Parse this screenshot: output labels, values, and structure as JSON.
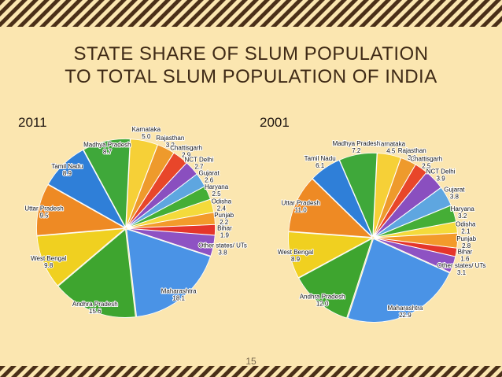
{
  "slide": {
    "title_line1": "STATE SHARE OF SLUM POPULATION",
    "title_line2": "TO TOTAL SLUM POPULATION OF INDIA",
    "page_number": "15"
  },
  "colors": {
    "background": "#fbe6b0",
    "stripe_dark": "#4a2f18",
    "stripe_light": "#fbe6b0",
    "title": "#3f2a16"
  },
  "chart_data": [
    {
      "type": "pie",
      "title": "2011",
      "slices": [
        {
          "label": "Karnataka",
          "value": 5.0,
          "color": "#f6d037"
        },
        {
          "label": "Rajasthan",
          "value": 3.2,
          "color": "#ee9a2c"
        },
        {
          "label": "Chattisgarh",
          "value": 2.9,
          "color": "#e8462a"
        },
        {
          "label": "NCT Delhi",
          "value": 2.7,
          "color": "#8a4fbf"
        },
        {
          "label": "Gujarat",
          "value": 2.6,
          "color": "#5ea6e0"
        },
        {
          "label": "Haryana",
          "value": 2.5,
          "color": "#45ae36"
        },
        {
          "label": "Odisha",
          "value": 2.4,
          "color": "#f4da3b"
        },
        {
          "label": "Punjab",
          "value": 2.2,
          "color": "#f39a2b"
        },
        {
          "label": "Bihar",
          "value": 1.9,
          "color": "#e5352b"
        },
        {
          "label": "Other states/ UTs",
          "value": 3.8,
          "color": "#8e52c3"
        },
        {
          "label": "Maharashtra",
          "value": 18.1,
          "color": "#4a93e6"
        },
        {
          "label": "Andhra Pradesh",
          "value": 15.6,
          "color": "#3ea52f"
        },
        {
          "label": "West Bengal",
          "value": 9.8,
          "color": "#f0d020"
        },
        {
          "label": "Uttar Pradesh",
          "value": 9.5,
          "color": "#ee8a24"
        },
        {
          "label": "Tamil Nadu",
          "value": 8.9,
          "color": "#2f7fd8"
        },
        {
          "label": "Madhya Pradesh",
          "value": 8.7,
          "color": "#3fa83a"
        }
      ]
    },
    {
      "type": "pie",
      "title": "2001",
      "slices": [
        {
          "label": "Karnataka",
          "value": 4.5,
          "color": "#f6d037"
        },
        {
          "label": "Rajasthan",
          "value": 3.0,
          "color": "#ee9a2c"
        },
        {
          "label": "Chattisgarh",
          "value": 2.5,
          "color": "#e8462a"
        },
        {
          "label": "NCT Delhi",
          "value": 3.9,
          "color": "#8a4fbf"
        },
        {
          "label": "Gujarat",
          "value": 3.8,
          "color": "#5ea6e0"
        },
        {
          "label": "Haryana",
          "value": 3.2,
          "color": "#45ae36"
        },
        {
          "label": "Odisha",
          "value": 2.1,
          "color": "#f4da3b"
        },
        {
          "label": "Punjab",
          "value": 2.8,
          "color": "#f39a2b"
        },
        {
          "label": "Bihar",
          "value": 1.6,
          "color": "#e5352b"
        },
        {
          "label": "Other states/ UTs",
          "value": 3.1,
          "color": "#8e52c3"
        },
        {
          "label": "Maharashtra",
          "value": 22.9,
          "color": "#4a93e6"
        },
        {
          "label": "Andhra Pradesh",
          "value": 12.0,
          "color": "#3ea52f"
        },
        {
          "label": "West Bengal",
          "value": 8.9,
          "color": "#f0d020"
        },
        {
          "label": "Uttar Pradesh",
          "value": 11.0,
          "color": "#ee8a24"
        },
        {
          "label": "Tamil Nadu",
          "value": 6.1,
          "color": "#2f7fd8"
        },
        {
          "label": "Madhya Pradesh",
          "value": 7.2,
          "color": "#3fa83a"
        }
      ]
    }
  ]
}
